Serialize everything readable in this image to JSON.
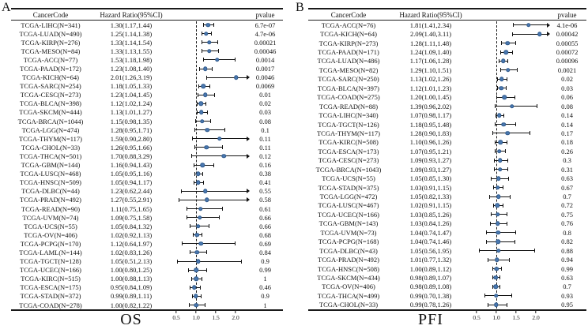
{
  "figure_title": "Forest plots of univariate Cox regression across TCGA cancer types",
  "styles": {
    "point_color": "#4a78b0",
    "point_edge": "#2f5a8c",
    "line_color": "#111111",
    "refline_style": "dashed"
  },
  "chart_data": [
    {
      "type": "scatter",
      "title": "A",
      "xlabel": "OS",
      "columns": {
        "cancer_code": "CancerCode",
        "hazard_ratio": "Hazard Ratio(95%CI)",
        "pvalue": "pvalue"
      },
      "xlim": [
        0.4,
        2.3
      ],
      "refline": 1.0,
      "xticks": [
        0.5,
        1.0,
        1.5,
        2.0
      ],
      "xtick_labels": [
        "0.5",
        "1.0",
        "1.5",
        "2.0"
      ],
      "rows": [
        {
          "label": "TCGA-LIHC(N=341)",
          "hr": 1.3,
          "ci": [
            1.17,
            1.44
          ],
          "hr_text": "1.30(1.17,1.44)",
          "pvalue": "6.7e-07"
        },
        {
          "label": "TCGA-LUAD(N=490)",
          "hr": 1.25,
          "ci": [
            1.14,
            1.38
          ],
          "hr_text": "1.25(1.14,1.38)",
          "pvalue": "4.7e-06"
        },
        {
          "label": "TCGA-KIRP(N=276)",
          "hr": 1.33,
          "ci": [
            1.14,
            1.54
          ],
          "hr_text": "1.33(1.14,1.54)",
          "pvalue": "0.00021"
        },
        {
          "label": "TCGA-MESO(N=84)",
          "hr": 1.33,
          "ci": [
            1.13,
            1.55
          ],
          "hr_text": "1.33(1.13,1.55)",
          "pvalue": "0.00046"
        },
        {
          "label": "TCGA-ACC(N=77)",
          "hr": 1.53,
          "ci": [
            1.18,
            1.98
          ],
          "hr_text": "1.53(1.18,1.98)",
          "pvalue": "0.0014"
        },
        {
          "label": "TCGA-PAAD(N=172)",
          "hr": 1.23,
          "ci": [
            1.08,
            1.4
          ],
          "hr_text": "1.23(1.08,1.40)",
          "pvalue": "0.0017"
        },
        {
          "label": "TCGA-KICH(N=64)",
          "hr": 2.01,
          "ci": [
            1.26,
            3.19
          ],
          "hr_text": "2.01(1.26,3.19)",
          "pvalue": "0.0046"
        },
        {
          "label": "TCGA-SARC(N=254)",
          "hr": 1.18,
          "ci": [
            1.05,
            1.33
          ],
          "hr_text": "1.18(1.05,1.33)",
          "pvalue": "0.0069"
        },
        {
          "label": "TCGA-CESC(N=273)",
          "hr": 1.23,
          "ci": [
            1.04,
            1.45
          ],
          "hr_text": "1.23(1.04,1.45)",
          "pvalue": "0.01"
        },
        {
          "label": "TCGA-BLCA(N=398)",
          "hr": 1.12,
          "ci": [
            1.02,
            1.24
          ],
          "hr_text": "1.12(1.02,1.24)",
          "pvalue": "0.02"
        },
        {
          "label": "TCGA-SKCM(N=444)",
          "hr": 1.13,
          "ci": [
            1.01,
            1.27
          ],
          "hr_text": "1.13(1.01,1.27)",
          "pvalue": "0.03"
        },
        {
          "label": "TCGA-BRCA(N=1044)",
          "hr": 1.15,
          "ci": [
            0.98,
            1.35
          ],
          "hr_text": "1.15(0.98,1.35)",
          "pvalue": "0.08"
        },
        {
          "label": "TCGA-LGG(N=474)",
          "hr": 1.28,
          "ci": [
            0.95,
            1.71
          ],
          "hr_text": "1.28(0.95,1.71)",
          "pvalue": "0.1"
        },
        {
          "label": "TCGA-THYM(N=117)",
          "hr": 1.59,
          "ci": [
            0.9,
            2.8
          ],
          "hr_text": "1.59(0.90,2.80)",
          "pvalue": "0.11"
        },
        {
          "label": "TCGA-CHOL(N=33)",
          "hr": 1.26,
          "ci": [
            0.95,
            1.66
          ],
          "hr_text": "1.26(0.95,1.66)",
          "pvalue": "0.11"
        },
        {
          "label": "TCGA-THCA(N=501)",
          "hr": 1.7,
          "ci": [
            0.88,
            3.29
          ],
          "hr_text": "1.70(0.88,3.29)",
          "pvalue": "0.12"
        },
        {
          "label": "TCGA-GBM(N=144)",
          "hr": 1.16,
          "ci": [
            0.94,
            1.43
          ],
          "hr_text": "1.16(0.94,1.43)",
          "pvalue": "0.16"
        },
        {
          "label": "TCGA-LUSC(N=468)",
          "hr": 1.05,
          "ci": [
            0.95,
            1.16
          ],
          "hr_text": "1.05(0.95,1.16)",
          "pvalue": "0.38"
        },
        {
          "label": "TCGA-HNSC(N=509)",
          "hr": 1.05,
          "ci": [
            0.94,
            1.17
          ],
          "hr_text": "1.05(0.94,1.17)",
          "pvalue": "0.41"
        },
        {
          "label": "TCGA-DLBC(N=44)",
          "hr": 1.23,
          "ci": [
            0.62,
            2.44
          ],
          "hr_text": "1.23(0.62,2.44)",
          "pvalue": "0.55"
        },
        {
          "label": "TCGA-PRAD(N=492)",
          "hr": 1.27,
          "ci": [
            0.55,
            2.91
          ],
          "hr_text": "1.27(0.55,2.91)",
          "pvalue": "0.58"
        },
        {
          "label": "TCGA-READ(N=90)",
          "hr": 1.11,
          "ci": [
            0.75,
            1.65
          ],
          "hr_text": "1.11(0.75,1.65)",
          "pvalue": "0.61"
        },
        {
          "label": "TCGA-UVM(N=74)",
          "hr": 1.09,
          "ci": [
            0.75,
            1.58
          ],
          "hr_text": "1.09(0.75,1.58)",
          "pvalue": "0.66"
        },
        {
          "label": "TCGA-UCS(N=55)",
          "hr": 1.05,
          "ci": [
            0.84,
            1.32
          ],
          "hr_text": "1.05(0.84,1.32)",
          "pvalue": "0.66"
        },
        {
          "label": "TCGA-OV(N=406)",
          "hr": 1.02,
          "ci": [
            0.92,
            1.13
          ],
          "hr_text": "1.02(0.92,1.13)",
          "pvalue": "0.68"
        },
        {
          "label": "TCGA-PCPG(N=170)",
          "hr": 1.12,
          "ci": [
            0.64,
            1.97
          ],
          "hr_text": "1.12(0.64,1.97)",
          "pvalue": "0.69"
        },
        {
          "label": "TCGA-LAML(N=144)",
          "hr": 1.02,
          "ci": [
            0.83,
            1.26
          ],
          "hr_text": "1.02(0.83,1.26)",
          "pvalue": "0.84"
        },
        {
          "label": "TCGA-TGCT(N=128)",
          "hr": 1.05,
          "ci": [
            0.51,
            2.13
          ],
          "hr_text": "1.05(0.51,2.13)",
          "pvalue": "0.9"
        },
        {
          "label": "TCGA-UCEC(N=166)",
          "hr": 1.0,
          "ci": [
            0.8,
            1.25
          ],
          "hr_text": "1.00(0.80,1.25)",
          "pvalue": "0.99"
        },
        {
          "label": "TCGA-KIRC(N=515)",
          "hr": 1.0,
          "ci": [
            0.88,
            1.13
          ],
          "hr_text": "1.00(0.88,1.13)",
          "pvalue": "1"
        },
        {
          "label": "TCGA-ESCA(N=175)",
          "hr": 0.95,
          "ci": [
            0.84,
            1.09
          ],
          "hr_text": "0.95(0.84,1.09)",
          "pvalue": "0.46"
        },
        {
          "label": "TCGA-STAD(N=372)",
          "hr": 0.99,
          "ci": [
            0.89,
            1.11
          ],
          "hr_text": "0.99(0.89,1.11)",
          "pvalue": "0.9"
        },
        {
          "label": "TCGA-COAD(N=278)",
          "hr": 1.0,
          "ci": [
            0.82,
            1.22
          ],
          "hr_text": "1.00(0.82,1.22)",
          "pvalue": "1"
        }
      ]
    },
    {
      "type": "scatter",
      "title": "B",
      "xlabel": "PFI",
      "columns": {
        "cancer_code": "CancerCode",
        "hazard_ratio": "Hazard Ratio(95%CI)",
        "pvalue": "pvalue"
      },
      "xlim": [
        0.4,
        2.3
      ],
      "refline": 1.0,
      "xticks": [
        0.5,
        1.0,
        1.5,
        2.0
      ],
      "xtick_labels": [
        "0.5",
        "1.0",
        "1.5",
        "2.0"
      ],
      "rows": [
        {
          "label": "TCGA-ACC(N=76)",
          "hr": 1.81,
          "ci": [
            1.41,
            2.34
          ],
          "hr_text": "1.81(1.41,2.34)",
          "pvalue": "4.1e-06"
        },
        {
          "label": "TCGA-KICH(N=64)",
          "hr": 2.09,
          "ci": [
            1.4,
            3.11
          ],
          "hr_text": "2.09(1.40,3.11)",
          "pvalue": "0.00042"
        },
        {
          "label": "TCGA-KIRP(N=273)",
          "hr": 1.28,
          "ci": [
            1.11,
            1.48
          ],
          "hr_text": "1.28(1.11,1.48)",
          "pvalue": "0.00055"
        },
        {
          "label": "TCGA-PAAD(N=171)",
          "hr": 1.24,
          "ci": [
            1.09,
            1.4
          ],
          "hr_text": "1.24(1.09,1.40)",
          "pvalue": "0.00072"
        },
        {
          "label": "TCGA-LUAD(N=486)",
          "hr": 1.17,
          "ci": [
            1.06,
            1.28
          ],
          "hr_text": "1.17(1.06,1.28)",
          "pvalue": "0.00096"
        },
        {
          "label": "TCGA-MESO(N=82)",
          "hr": 1.29,
          "ci": [
            1.1,
            1.51
          ],
          "hr_text": "1.29(1.10,1.51)",
          "pvalue": "0.0021"
        },
        {
          "label": "TCGA-SARC(N=250)",
          "hr": 1.13,
          "ci": [
            1.02,
            1.26
          ],
          "hr_text": "1.13(1.02,1.26)",
          "pvalue": "0.02"
        },
        {
          "label": "TCGA-BLCA(N=397)",
          "hr": 1.12,
          "ci": [
            1.01,
            1.23
          ],
          "hr_text": "1.12(1.01,1.23)",
          "pvalue": "0.03"
        },
        {
          "label": "TCGA-COAD(N=275)",
          "hr": 1.2,
          "ci": [
            1.0,
            1.45
          ],
          "hr_text": "1.20(1.00,1.45)",
          "pvalue": "0.06"
        },
        {
          "label": "TCGA-READ(N=88)",
          "hr": 1.39,
          "ci": [
            0.96,
            2.02
          ],
          "hr_text": "1.39(0.96,2.02)",
          "pvalue": "0.08"
        },
        {
          "label": "TCGA-LIHC(N=340)",
          "hr": 1.07,
          "ci": [
            0.98,
            1.17
          ],
          "hr_text": "1.07(0.98,1.17)",
          "pvalue": "0.14"
        },
        {
          "label": "TCGA-TGCT(N=126)",
          "hr": 1.18,
          "ci": [
            0.95,
            1.48
          ],
          "hr_text": "1.18(0.95,1.48)",
          "pvalue": "0.14"
        },
        {
          "label": "TCGA-THYM(N=117)",
          "hr": 1.28,
          "ci": [
            0.9,
            1.83
          ],
          "hr_text": "1.28(0.90,1.83)",
          "pvalue": "0.17"
        },
        {
          "label": "TCGA-KIRC(N=508)",
          "hr": 1.1,
          "ci": [
            0.96,
            1.26
          ],
          "hr_text": "1.10(0.96,1.26)",
          "pvalue": "0.18"
        },
        {
          "label": "TCGA-ESCA(N=173)",
          "hr": 1.07,
          "ci": [
            0.95,
            1.21
          ],
          "hr_text": "1.07(0.95,1.21)",
          "pvalue": "0.26"
        },
        {
          "label": "TCGA-CESC(N=273)",
          "hr": 1.09,
          "ci": [
            0.93,
            1.27
          ],
          "hr_text": "1.09(0.93,1.27)",
          "pvalue": "0.3"
        },
        {
          "label": "TCGA-BRCA(N=1043)",
          "hr": 1.09,
          "ci": [
            0.93,
            1.27
          ],
          "hr_text": "1.09(0.93,1.27)",
          "pvalue": "0.31"
        },
        {
          "label": "TCGA-UCS(N=55)",
          "hr": 1.05,
          "ci": [
            0.85,
            1.3
          ],
          "hr_text": "1.05(0.85,1.30)",
          "pvalue": "0.63"
        },
        {
          "label": "TCGA-STAD(N=375)",
          "hr": 1.03,
          "ci": [
            0.91,
            1.15
          ],
          "hr_text": "1.03(0.91,1.15)",
          "pvalue": "0.67"
        },
        {
          "label": "TCGA-LGG(N=472)",
          "hr": 1.05,
          "ci": [
            0.82,
            1.33
          ],
          "hr_text": "1.05(0.82,1.33)",
          "pvalue": "0.7"
        },
        {
          "label": "TCGA-LUSC(N=467)",
          "hr": 1.02,
          "ci": [
            0.91,
            1.15
          ],
          "hr_text": "1.02(0.91,1.15)",
          "pvalue": "0.72"
        },
        {
          "label": "TCGA-UCEC(N=166)",
          "hr": 1.03,
          "ci": [
            0.85,
            1.26
          ],
          "hr_text": "1.03(0.85,1.26)",
          "pvalue": "0.75"
        },
        {
          "label": "TCGA-GBM(N=143)",
          "hr": 1.03,
          "ci": [
            0.84,
            1.26
          ],
          "hr_text": "1.03(0.84,1.26)",
          "pvalue": "0.76"
        },
        {
          "label": "TCGA-UVM(N=73)",
          "hr": 1.04,
          "ci": [
            0.74,
            1.47
          ],
          "hr_text": "1.04(0.74,1.47)",
          "pvalue": "0.8"
        },
        {
          "label": "TCGA-PCPG(N=168)",
          "hr": 1.04,
          "ci": [
            0.74,
            1.46
          ],
          "hr_text": "1.04(0.74,1.46)",
          "pvalue": "0.82"
        },
        {
          "label": "TCGA-DLBC(N=43)",
          "hr": 1.05,
          "ci": [
            0.56,
            1.95
          ],
          "hr_text": "1.05(0.56,1.95)",
          "pvalue": "0.88"
        },
        {
          "label": "TCGA-PRAD(N=492)",
          "hr": 1.01,
          "ci": [
            0.77,
            1.32
          ],
          "hr_text": "1.01(0.77,1.32)",
          "pvalue": "0.94"
        },
        {
          "label": "TCGA-HNSC(N=508)",
          "hr": 1.0,
          "ci": [
            0.89,
            1.12
          ],
          "hr_text": "1.00(0.89,1.12)",
          "pvalue": "0.99"
        },
        {
          "label": "TCGA-SKCM(N=434)",
          "hr": 0.98,
          "ci": [
            0.89,
            1.07
          ],
          "hr_text": "0.98(0.89,1.07)",
          "pvalue": "0.63"
        },
        {
          "label": "TCGA-OV(N=406)",
          "hr": 0.98,
          "ci": [
            0.89,
            1.08
          ],
          "hr_text": "0.98(0.89,1.08)",
          "pvalue": "0.7"
        },
        {
          "label": "TCGA-THCA(N=499)",
          "hr": 0.99,
          "ci": [
            0.7,
            1.38
          ],
          "hr_text": "0.99(0.70,1.38)",
          "pvalue": "0.93"
        },
        {
          "label": "TCGA-CHOL(N=33)",
          "hr": 0.99,
          "ci": [
            0.78,
            1.26
          ],
          "hr_text": "0.99(0.78,1.26)",
          "pvalue": "0.95"
        }
      ]
    }
  ]
}
